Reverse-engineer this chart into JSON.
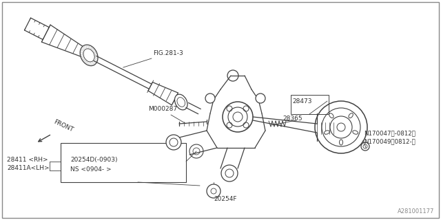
{
  "bg_color": "#ffffff",
  "line_color": "#404040",
  "text_color": "#303030",
  "watermark": "A281001177",
  "labels": {
    "fig_ref": "FIG.281-3",
    "m000287": "M000287",
    "part28473": "28473",
    "part28365": "28365",
    "part28411_rh": "28411 <RH>",
    "part28411_lh": "28411A<LH>",
    "part20254d_1": "20254D(-0903)",
    "part20254d_2": "NS <0904- >",
    "part20254f": "20254F",
    "n170047": "N170047（-0812）",
    "n170049": "N170049（0812-）",
    "front": "FRONT"
  }
}
